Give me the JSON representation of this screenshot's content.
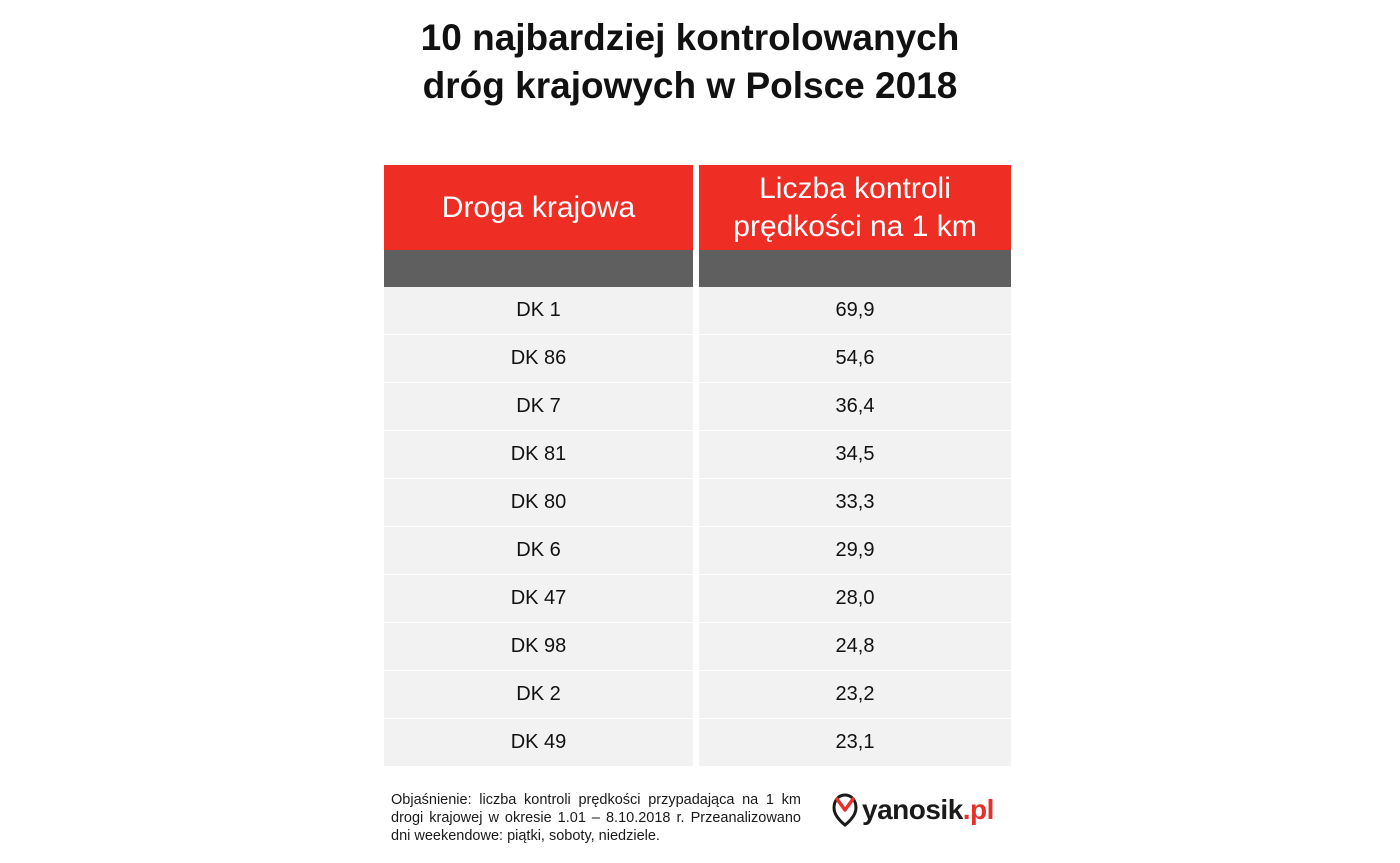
{
  "title": {
    "line1": "10 najbardziej kontrolowanych",
    "line2": "dróg krajowych w Polsce 2018"
  },
  "colors": {
    "header_red": "#ee2e24",
    "subheader_gray": "#5f5f5f",
    "row_bg": "#f2f2f2",
    "logo_red": "#e8302a"
  },
  "chart_data": {
    "type": "table",
    "title": "10 najbardziej kontrolowanych dróg krajowych w Polsce 2018",
    "columns": [
      "Droga krajowa",
      "Liczba kontroli prędkości na 1 km"
    ],
    "rows": [
      [
        "DK 1",
        "69,9"
      ],
      [
        "DK 86",
        "54,6"
      ],
      [
        "DK 7",
        "36,4"
      ],
      [
        "DK 81",
        "34,5"
      ],
      [
        "DK 80",
        "33,3"
      ],
      [
        "DK 6",
        "29,9"
      ],
      [
        "DK 47",
        "28,0"
      ],
      [
        "DK 98",
        "24,8"
      ],
      [
        "DK 2",
        "23,2"
      ],
      [
        "DK 49",
        "23,1"
      ]
    ]
  },
  "header": {
    "col1": "Droga krajowa",
    "col2_line1": "Liczba kontroli",
    "col2_line2": "prędkości na 1 km"
  },
  "footnote": "Objaśnienie: liczba kontroli prędkości przypadająca na 1 km drogi krajowej w okresie 1.01 – 8.10.2018 r. Przeanalizowano dni weekendowe: piątki, soboty, niedziele.",
  "logo": {
    "icon": "yanosik-logo-icon",
    "name": "yanosik",
    "suffix": ".pl"
  }
}
